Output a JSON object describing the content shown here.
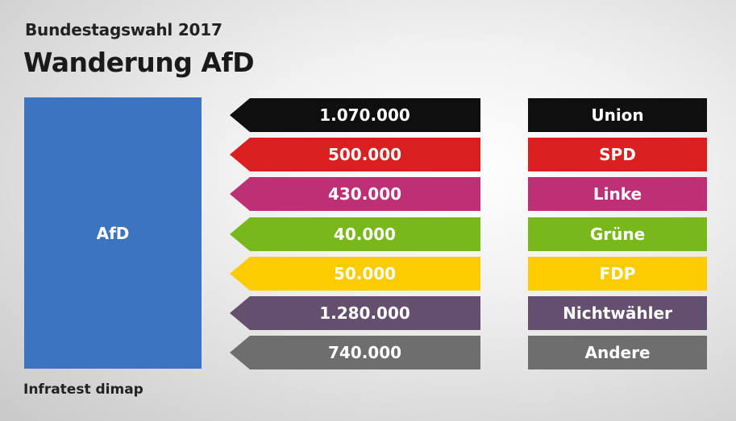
{
  "header": {
    "subtitle": "Bundestagswahl 2017",
    "title": "Wanderung AfD"
  },
  "source": "Infratest dimap",
  "colors": {
    "AfD": "#3d74c1"
  },
  "chart_data": {
    "type": "table",
    "title": "Wanderung AfD",
    "subtitle": "Bundestagswahl 2017",
    "target": "AfD",
    "rows": [
      {
        "source": "Union",
        "value": "1.070.000",
        "color": "#0f0f0f"
      },
      {
        "source": "SPD",
        "value": "500.000",
        "color": "#d91f1f"
      },
      {
        "source": "Linke",
        "value": "430.000",
        "color": "#be3075"
      },
      {
        "source": "Grüne",
        "value": "40.000",
        "color": "#78b81b"
      },
      {
        "source": "FDP",
        "value": "50.000",
        "color": "#fccc00"
      },
      {
        "source": "Nichtwähler",
        "value": "1.280.000",
        "color": "#654f6e"
      },
      {
        "source": "Andere",
        "value": "740.000",
        "color": "#6e6e6e"
      }
    ]
  }
}
